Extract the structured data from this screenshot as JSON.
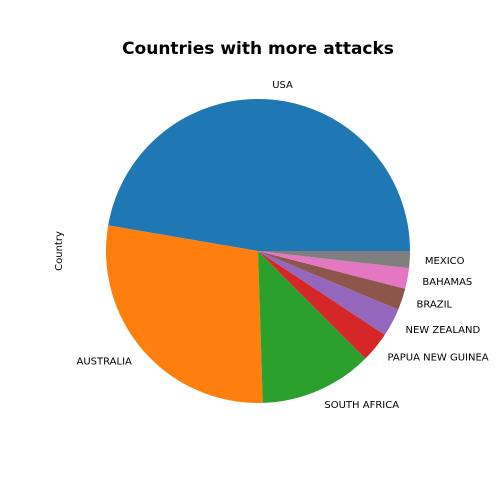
{
  "chart_data": {
    "type": "pie",
    "title": "Countries with more attacks",
    "ylabel": "Country",
    "start_angle": 0,
    "direction": "counterclockwise",
    "slices": [
      {
        "label": "USA",
        "value": 47.3,
        "color": "#1f77b4"
      },
      {
        "label": "AUSTRALIA",
        "value": 28.2,
        "color": "#ff7f0e"
      },
      {
        "label": "SOUTH AFRICA",
        "value": 12.0,
        "color": "#2ca02c"
      },
      {
        "label": "PAPUA NEW GUINEA",
        "value": 3.2,
        "color": "#d62728"
      },
      {
        "label": "NEW ZEALAND",
        "value": 3.0,
        "color": "#9467bd"
      },
      {
        "label": "BRAZIL",
        "value": 2.3,
        "color": "#8c564b"
      },
      {
        "label": "BAHAMAS",
        "value": 2.2,
        "color": "#e377c2"
      },
      {
        "label": "MEXICO",
        "value": 1.8,
        "color": "#7f7f7f"
      }
    ]
  }
}
